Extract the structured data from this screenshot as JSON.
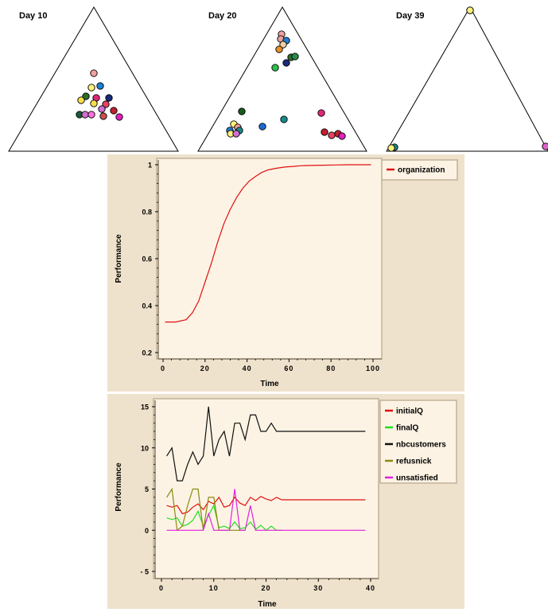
{
  "chart_data": [
    {
      "type": "scatter",
      "subtype": "ternary",
      "title": "Day   10",
      "colors": [
        "#f2a0a0",
        "#1e7fd6",
        "#fff27a",
        "#f5e04a",
        "#2a6e2a",
        "#e0287a",
        "#1a2a7a",
        "#c02030",
        "#e84060",
        "#1a8a8a",
        "#d070d0",
        "#e060d0",
        "#ff70e0",
        "#c85050"
      ],
      "points": [
        {
          "x": 118,
          "y": 92,
          "color": "#f2a0a0"
        },
        {
          "x": 126,
          "y": 108,
          "color": "#1e7fd6"
        },
        {
          "x": 115,
          "y": 110,
          "color": "#fff27a"
        },
        {
          "x": 137,
          "y": 123,
          "color": "#1a2a7a"
        },
        {
          "x": 108,
          "y": 121,
          "color": "#2a6e2a"
        },
        {
          "x": 102,
          "y": 126,
          "color": "#f5e04a"
        },
        {
          "x": 121,
          "y": 123,
          "color": "#e0287a"
        },
        {
          "x": 118,
          "y": 130,
          "color": "#f5e04a"
        },
        {
          "x": 133,
          "y": 131,
          "color": "#e84060"
        },
        {
          "x": 143,
          "y": 139,
          "color": "#c02030"
        },
        {
          "x": 128,
          "y": 137,
          "color": "#d070d0"
        },
        {
          "x": 100,
          "y": 144,
          "color": "#1a5a3a"
        },
        {
          "x": 107,
          "y": 144,
          "color": "#d070d0"
        },
        {
          "x": 115,
          "y": 144,
          "color": "#ff70e0"
        },
        {
          "x": 130,
          "y": 146,
          "color": "#c85050"
        },
        {
          "x": 150,
          "y": 147,
          "color": "#e020c0"
        }
      ]
    },
    {
      "type": "scatter",
      "subtype": "ternary",
      "title": "Day   20",
      "points": [
        {
          "x": 354,
          "y": 43,
          "color": "#f2a0a0"
        },
        {
          "x": 353,
          "y": 49,
          "color": "#e8a0a0"
        },
        {
          "x": 360,
          "y": 51,
          "color": "#1e7fd6"
        },
        {
          "x": 356,
          "y": 56,
          "color": "#f0d0a0"
        },
        {
          "x": 351,
          "y": 62,
          "color": "#e8902a"
        },
        {
          "x": 366,
          "y": 72,
          "color": "#2a6e2a"
        },
        {
          "x": 371,
          "y": 71,
          "color": "#2a8a4a"
        },
        {
          "x": 360,
          "y": 79,
          "color": "#1a2a7a"
        },
        {
          "x": 346,
          "y": 85,
          "color": "#2ac04a"
        },
        {
          "x": 304,
          "y": 140,
          "color": "#1a5a1a"
        },
        {
          "x": 404,
          "y": 142,
          "color": "#e0287a"
        },
        {
          "x": 357,
          "y": 150,
          "color": "#1a8a8a"
        },
        {
          "x": 330,
          "y": 159,
          "color": "#1e6ad6"
        },
        {
          "x": 294,
          "y": 156,
          "color": "#fff27a"
        },
        {
          "x": 299,
          "y": 160,
          "color": "#f2a0a0"
        },
        {
          "x": 289,
          "y": 164,
          "color": "#1e7fd6"
        },
        {
          "x": 301,
          "y": 164,
          "color": "#1a8a8a"
        },
        {
          "x": 290,
          "y": 168,
          "color": "#fff27a"
        },
        {
          "x": 297,
          "y": 168,
          "color": "#d070d0"
        },
        {
          "x": 408,
          "y": 166,
          "color": "#c02030"
        },
        {
          "x": 417,
          "y": 170,
          "color": "#e84060"
        },
        {
          "x": 425,
          "y": 168,
          "color": "#c02030"
        },
        {
          "x": 430,
          "y": 171,
          "color": "#e020c0"
        }
      ]
    },
    {
      "type": "scatter",
      "subtype": "ternary",
      "title": "Day   39",
      "points": [
        {
          "x": 591,
          "y": 13,
          "color": "#e8902a"
        },
        {
          "x": 591,
          "y": 13,
          "color": "#fff27a"
        },
        {
          "x": 496,
          "y": 185,
          "color": "#1a8a8a"
        },
        {
          "x": 492,
          "y": 186,
          "color": "#fff27a"
        },
        {
          "x": 686,
          "y": 184,
          "color": "#e060d0"
        }
      ]
    },
    {
      "type": "line",
      "xlabel": "Time",
      "ylabel": "Performance",
      "xlim": [
        0,
        100
      ],
      "ylim": [
        0.2,
        1.0
      ],
      "xticks": [
        "0",
        "20",
        "40",
        "60",
        "80",
        "100"
      ],
      "yticks": [
        "0.2",
        "0.4",
        "0.6",
        "0.8",
        "1"
      ],
      "series": [
        {
          "name": "organization",
          "color": "#e01010",
          "x": [
            1,
            6,
            11,
            14,
            17,
            20,
            23,
            26,
            29,
            32,
            35,
            38,
            41,
            44,
            47,
            50,
            54,
            58,
            62,
            66,
            70,
            76,
            82,
            88,
            94,
            99
          ],
          "y": [
            0.33,
            0.33,
            0.34,
            0.37,
            0.42,
            0.5,
            0.58,
            0.67,
            0.75,
            0.81,
            0.86,
            0.9,
            0.93,
            0.95,
            0.967,
            0.978,
            0.985,
            0.99,
            0.993,
            0.996,
            0.997,
            0.998,
            0.999,
            1.0,
            1.0,
            1.0
          ]
        }
      ]
    },
    {
      "type": "line",
      "xlabel": "Time",
      "ylabel": "Performance",
      "xlim": [
        0,
        40
      ],
      "ylim": [
        -5,
        15
      ],
      "xticks": [
        "0",
        "10",
        "20",
        "30",
        "40"
      ],
      "yticks": [
        "- 5",
        "0",
        "5",
        "10",
        "15"
      ],
      "series": [
        {
          "name": "initialQ",
          "color": "#e01010",
          "x": [
            1,
            2,
            3,
            4,
            5,
            6,
            7,
            8,
            9,
            10,
            11,
            12,
            13,
            14,
            15,
            16,
            17,
            18,
            19,
            20,
            21,
            22,
            23,
            39
          ],
          "y": [
            3,
            2.8,
            3,
            2,
            2.2,
            2.8,
            3.2,
            2.5,
            3.5,
            3.2,
            4,
            2.8,
            3,
            4,
            3.3,
            3,
            4,
            3.6,
            4.1,
            3.8,
            3.6,
            4,
            3.7,
            3.7
          ]
        },
        {
          "name": "finalQ",
          "color": "#20e020",
          "x": [
            1,
            2,
            3,
            4,
            5,
            6,
            7,
            8,
            9,
            10,
            11,
            12,
            13,
            14,
            15,
            16,
            17,
            18,
            19,
            20,
            21,
            22,
            23
          ],
          "y": [
            1.5,
            1.3,
            1.5,
            0.5,
            0.7,
            1.2,
            2.3,
            0.5,
            1.8,
            3,
            0.3,
            0.5,
            0.2,
            1,
            0.2,
            0.3,
            1,
            0.1,
            0.6,
            0,
            0.5,
            0,
            0
          ]
        },
        {
          "name": "nbcustomers",
          "color": "#101010",
          "x": [
            1,
            2,
            3,
            4,
            5,
            6,
            7,
            8,
            9,
            10,
            11,
            12,
            13,
            14,
            15,
            16,
            17,
            18,
            19,
            20,
            21,
            22,
            39
          ],
          "y": [
            9,
            10,
            6,
            6,
            8,
            9.5,
            8,
            9,
            15,
            9,
            11,
            12,
            9,
            13,
            13,
            11,
            14,
            14,
            12,
            12,
            13,
            12,
            12
          ]
        },
        {
          "name": "refusnick",
          "color": "#8a8a10",
          "x": [
            1,
            2,
            3,
            4,
            5,
            6,
            7,
            8,
            9,
            10,
            11,
            12,
            13,
            14,
            15,
            16
          ],
          "y": [
            4,
            5,
            0,
            0.5,
            3,
            5,
            5,
            0,
            4,
            4,
            0,
            0,
            0,
            0,
            0,
            0
          ]
        },
        {
          "name": "unsatisfied",
          "color": "#e020e0",
          "x": [
            1,
            2,
            3,
            4,
            5,
            6,
            7,
            8,
            9,
            10,
            11,
            12,
            13,
            14,
            15,
            16,
            17,
            18,
            19,
            39
          ],
          "y": [
            0,
            0,
            0,
            0,
            0,
            0,
            0,
            0,
            2,
            0,
            0,
            0,
            0,
            5,
            0,
            0,
            3,
            0,
            0,
            0
          ]
        }
      ]
    }
  ]
}
